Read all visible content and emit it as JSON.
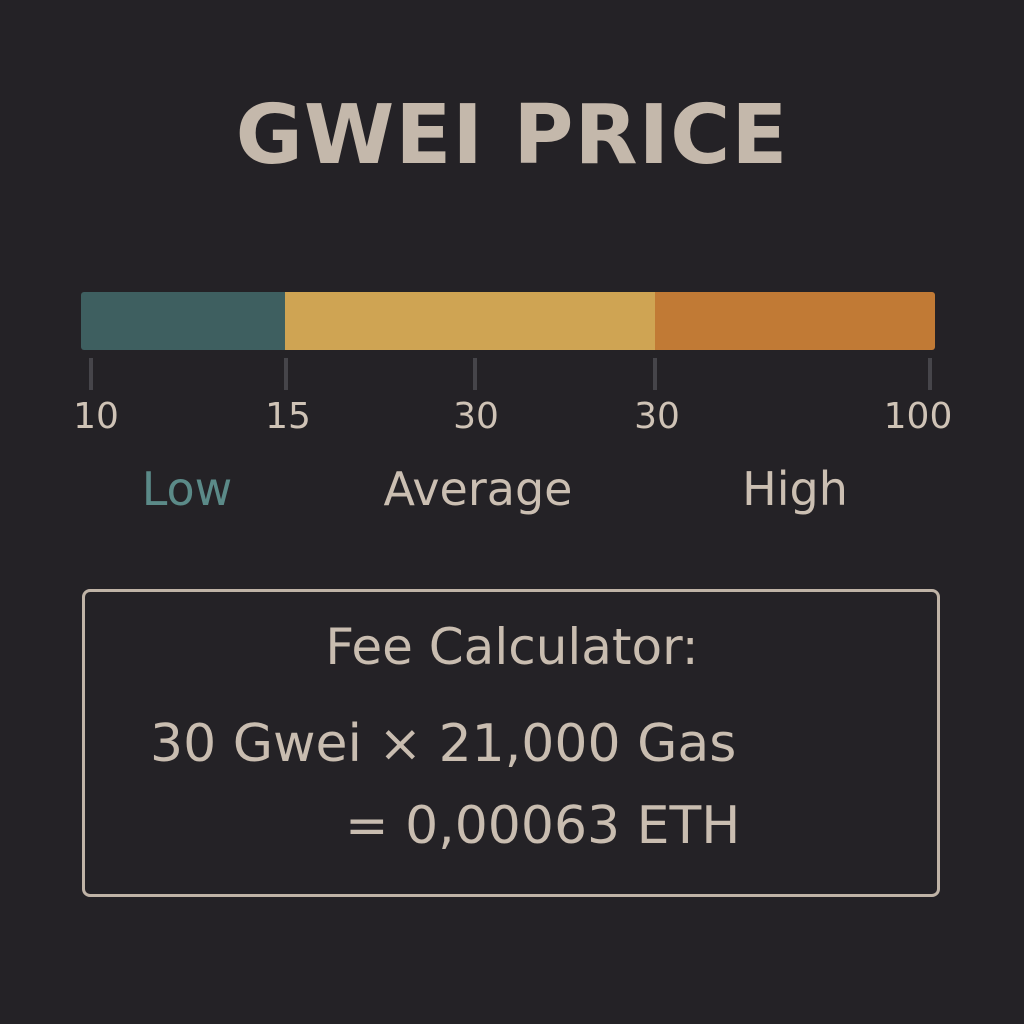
{
  "title": "GWEI PRICE",
  "scale": {
    "segments": [
      {
        "name": "low",
        "from": 10,
        "to": 15,
        "color": "#3e5f60"
      },
      {
        "name": "average",
        "from": 15,
        "to": 30,
        "color": "#cfa453"
      },
      {
        "name": "high",
        "from": 30,
        "to": 100,
        "color": "#c17a35"
      }
    ],
    "tick_labels": [
      "10",
      "15",
      "30",
      "30",
      "100"
    ],
    "categories": [
      {
        "label": "Low",
        "color": "#5b8a88"
      },
      {
        "label": "Average",
        "color": "#cbbfb2"
      },
      {
        "label": "High",
        "color": "#cbbfb2"
      }
    ]
  },
  "calculator": {
    "title": "Fee Calculator:",
    "line1": "30 Gwei × 21,000 Gas",
    "line2": "= 0,00063 ETH"
  }
}
